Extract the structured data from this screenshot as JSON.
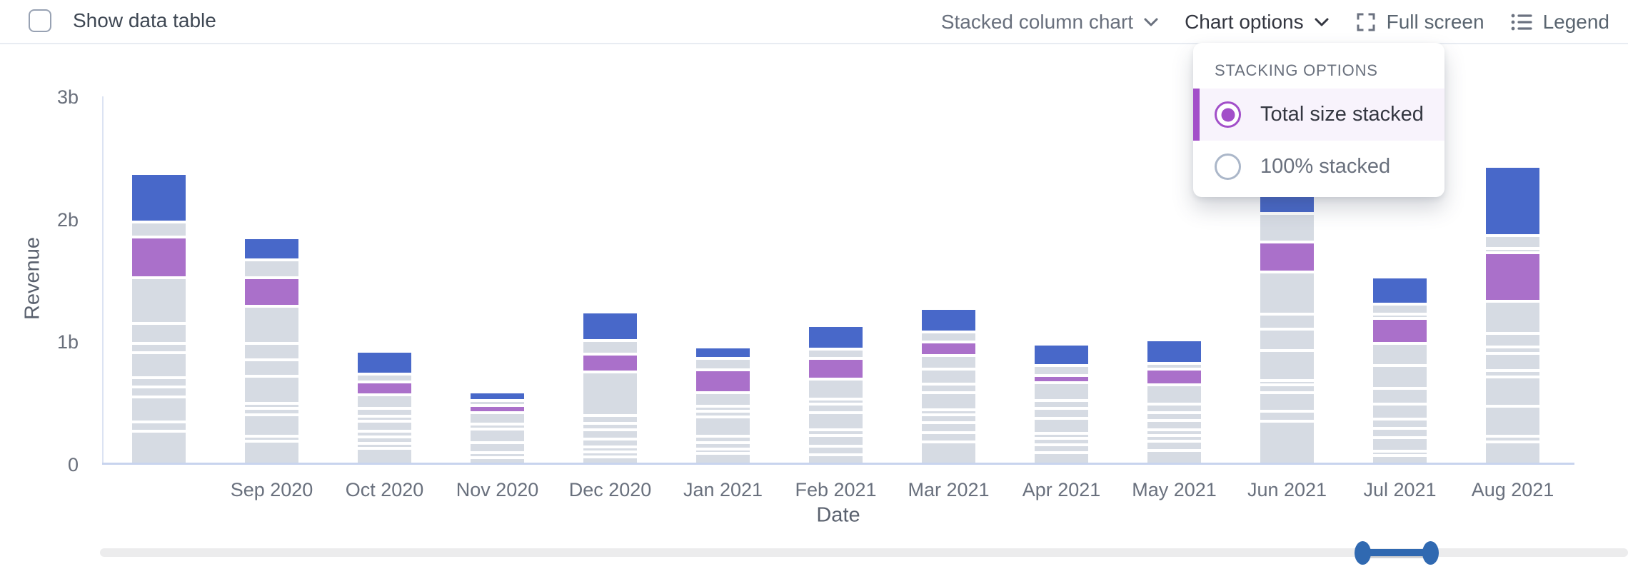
{
  "header": {
    "show_data_table_label": "Show data table",
    "chart_type_label": "Stacked column chart",
    "chart_options_label": "Chart options",
    "full_screen_label": "Full screen",
    "legend_label": "Legend"
  },
  "stacking_menu": {
    "title": "STACKING OPTIONS",
    "options": [
      {
        "label": "Total size stacked",
        "selected": true
      },
      {
        "label": "100% stacked",
        "selected": false
      }
    ],
    "accent_color": "#A24FC9"
  },
  "chart_data": {
    "type": "bar",
    "stacked": true,
    "title": "",
    "xlabel": "Date",
    "ylabel": "Revenue",
    "unit": "billions",
    "ylim": [
      0,
      3
    ],
    "y_ticks": [
      {
        "label": "0",
        "value": 0
      },
      {
        "label": "1b",
        "value": 1
      },
      {
        "label": "2b",
        "value": 2
      },
      {
        "label": "3b",
        "value": 3
      }
    ],
    "grid": false,
    "legend_position": "hidden",
    "colors": {
      "g": "#D6DBE3",
      "p": "#AA70CA",
      "b": "#4868C9"
    },
    "color_legend": {
      "g": "other-series-gray",
      "p": "highlight-purple",
      "b": "highlight-blue"
    },
    "categories": [
      "",
      "Sep 2020",
      "Oct 2020",
      "Nov 2020",
      "Dec 2020",
      "Jan 2021",
      "Feb 2021",
      "Mar 2021",
      "Apr 2021",
      "May 2021",
      "Jun 2021",
      "Jul 2021",
      "Aug 2021"
    ],
    "columns": [
      {
        "label": "",
        "total": 2.34,
        "segments": [
          {
            "c": "g",
            "v": 0.245
          },
          {
            "c": "g",
            "v": 0.05
          },
          {
            "c": "g",
            "v": 0.18
          },
          {
            "c": "g",
            "v": 0.06
          },
          {
            "c": "g",
            "v": 0.05
          },
          {
            "c": "g",
            "v": 0.18
          },
          {
            "c": "g",
            "v": 0.05
          },
          {
            "c": "g",
            "v": 0.14
          },
          {
            "c": "g",
            "v": 0.35
          },
          {
            "c": "p",
            "v": 0.31
          },
          {
            "c": "g",
            "v": 0.1
          },
          {
            "c": "b",
            "v": 0.37
          }
        ]
      },
      {
        "label": "Sep 2020",
        "total": 1.74,
        "segments": [
          {
            "c": "g",
            "v": 0.163
          },
          {
            "c": "g",
            "v": 0.018
          },
          {
            "c": "g",
            "v": 0.152
          },
          {
            "c": "g",
            "v": 0.029
          },
          {
            "c": "g",
            "v": 0.02
          },
          {
            "c": "g",
            "v": 0.2
          },
          {
            "c": "g",
            "v": 0.11
          },
          {
            "c": "g",
            "v": 0.11
          },
          {
            "c": "g",
            "v": 0.28
          },
          {
            "c": "p",
            "v": 0.21
          },
          {
            "c": "g",
            "v": 0.12
          },
          {
            "c": "b",
            "v": 0.16
          }
        ]
      },
      {
        "label": "Oct 2020",
        "total": 0.9,
        "segments": [
          {
            "c": "g",
            "v": 0.105
          },
          {
            "c": "g",
            "v": 0.02
          },
          {
            "c": "g",
            "v": 0.027
          },
          {
            "c": "g",
            "v": 0.022
          },
          {
            "c": "g",
            "v": 0.06
          },
          {
            "c": "g",
            "v": 0.02
          },
          {
            "c": "g",
            "v": 0.04
          },
          {
            "c": "g",
            "v": 0.086
          },
          {
            "c": "p",
            "v": 0.08
          },
          {
            "c": "g",
            "v": 0.04
          },
          {
            "c": "b",
            "v": 0.163
          }
        ]
      },
      {
        "label": "Nov 2020",
        "total": 0.52,
        "segments": [
          {
            "c": "g",
            "v": 0.03
          },
          {
            "c": "g",
            "v": 0.02
          },
          {
            "c": "g",
            "v": 0.058
          },
          {
            "c": "g",
            "v": 0.085
          },
          {
            "c": "g",
            "v": 0.015
          },
          {
            "c": "g",
            "v": 0.067
          },
          {
            "c": "p",
            "v": 0.036
          },
          {
            "c": "g",
            "v": 0.017
          },
          {
            "c": "b",
            "v": 0.048
          }
        ]
      },
      {
        "label": "Dec 2020",
        "total": 1.23,
        "segments": [
          {
            "c": "g",
            "v": 0.035
          },
          {
            "c": "g",
            "v": 0.015
          },
          {
            "c": "g",
            "v": 0.015
          },
          {
            "c": "g",
            "v": 0.04
          },
          {
            "c": "g",
            "v": 0.055
          },
          {
            "c": "g",
            "v": 0.03
          },
          {
            "c": "g",
            "v": 0.041
          },
          {
            "c": "g",
            "v": 0.332
          },
          {
            "c": "p",
            "v": 0.12
          },
          {
            "c": "g",
            "v": 0.09
          },
          {
            "c": "b",
            "v": 0.21
          }
        ]
      },
      {
        "label": "Jan 2021",
        "total": 0.89,
        "segments": [
          {
            "c": "g",
            "v": 0.064
          },
          {
            "c": "g",
            "v": 0.014
          },
          {
            "c": "g",
            "v": 0.029
          },
          {
            "c": "g",
            "v": 0.03
          },
          {
            "c": "g",
            "v": 0.136
          },
          {
            "c": "g",
            "v": 0.024
          },
          {
            "c": "g",
            "v": 0.02
          },
          {
            "c": "g",
            "v": 0.087
          },
          {
            "c": "p",
            "v": 0.165
          },
          {
            "c": "g",
            "v": 0.07
          },
          {
            "c": "b",
            "v": 0.07
          }
        ]
      },
      {
        "label": "Feb 2021",
        "total": 1.09,
        "segments": [
          {
            "c": "g",
            "v": 0.05
          },
          {
            "c": "g",
            "v": 0.046
          },
          {
            "c": "g",
            "v": 0.065
          },
          {
            "c": "g",
            "v": 0.023
          },
          {
            "c": "g",
            "v": 0.114
          },
          {
            "c": "g",
            "v": 0.044
          },
          {
            "c": "g",
            "v": 0.02
          },
          {
            "c": "g",
            "v": 0.138
          },
          {
            "c": "p",
            "v": 0.145
          },
          {
            "c": "g",
            "v": 0.05
          },
          {
            "c": "b",
            "v": 0.17
          }
        ]
      },
      {
        "label": "Mar 2021",
        "total": 1.22,
        "segments": [
          {
            "c": "g",
            "v": 0.157
          },
          {
            "c": "g",
            "v": 0.053
          },
          {
            "c": "g",
            "v": 0.06
          },
          {
            "c": "g",
            "v": 0.04
          },
          {
            "c": "g",
            "v": 0.015
          },
          {
            "c": "g",
            "v": 0.116
          },
          {
            "c": "g",
            "v": 0.047
          },
          {
            "c": "g",
            "v": 0.1
          },
          {
            "c": "g",
            "v": 0.09
          },
          {
            "c": "p",
            "v": 0.09
          },
          {
            "c": "g",
            "v": 0.06
          },
          {
            "c": "b",
            "v": 0.17
          }
        ]
      },
      {
        "label": "Apr 2021",
        "total": 1.0,
        "segments": [
          {
            "c": "g",
            "v": 0.07
          },
          {
            "c": "g",
            "v": 0.041
          },
          {
            "c": "g",
            "v": 0.03
          },
          {
            "c": "g",
            "v": 0.02
          },
          {
            "c": "g",
            "v": 0.1
          },
          {
            "c": "g",
            "v": 0.06
          },
          {
            "c": "g",
            "v": 0.042
          },
          {
            "c": "g",
            "v": 0.125
          },
          {
            "c": "p",
            "v": 0.036
          },
          {
            "c": "g",
            "v": 0.06
          },
          {
            "c": "b",
            "v": 0.154
          }
        ]
      },
      {
        "label": "May 2021",
        "total": 0.99,
        "segments": [
          {
            "c": "g",
            "v": 0.09
          },
          {
            "c": "g",
            "v": 0.05
          },
          {
            "c": "g",
            "v": 0.025
          },
          {
            "c": "g",
            "v": 0.023
          },
          {
            "c": "g",
            "v": 0.05
          },
          {
            "c": "g",
            "v": 0.041
          },
          {
            "c": "g",
            "v": 0.046
          },
          {
            "c": "g",
            "v": 0.133
          },
          {
            "c": "p",
            "v": 0.104
          },
          {
            "c": "g",
            "v": 0.025
          },
          {
            "c": "b",
            "v": 0.17
          }
        ]
      },
      {
        "label": "Jun 2021",
        "total": 2.18,
        "segments": [
          {
            "c": "g",
            "v": 0.326
          },
          {
            "c": "g",
            "v": 0.058
          },
          {
            "c": "g",
            "v": 0.128
          },
          {
            "c": "g",
            "v": 0.04
          },
          {
            "c": "g",
            "v": 0.01
          },
          {
            "c": "g",
            "v": 0.22
          },
          {
            "c": "g",
            "v": 0.15
          },
          {
            "c": "g",
            "v": 0.1
          },
          {
            "c": "g",
            "v": 0.32
          },
          {
            "c": "p",
            "v": 0.22
          },
          {
            "c": "g",
            "v": 0.21
          },
          {
            "c": "b",
            "v": 0.13
          }
        ]
      },
      {
        "label": "Jul 2021",
        "total": 1.44,
        "segments": [
          {
            "c": "g",
            "v": 0.047
          },
          {
            "c": "g",
            "v": 0.012
          },
          {
            "c": "g",
            "v": 0.085
          },
          {
            "c": "g",
            "v": 0.05
          },
          {
            "c": "g",
            "v": 0.05
          },
          {
            "c": "g",
            "v": 0.098
          },
          {
            "c": "g",
            "v": 0.105
          },
          {
            "c": "g",
            "v": 0.163
          },
          {
            "c": "g",
            "v": 0.16
          },
          {
            "c": "p",
            "v": 0.18
          },
          {
            "c": "g",
            "v": 0.011
          },
          {
            "c": "g",
            "v": 0.06
          },
          {
            "c": "b",
            "v": 0.2
          }
        ]
      },
      {
        "label": "Aug 2021",
        "total": 2.4,
        "segments": [
          {
            "c": "g",
            "v": 0.157
          },
          {
            "c": "g",
            "v": 0.025
          },
          {
            "c": "g",
            "v": 0.22
          },
          {
            "c": "g",
            "v": 0.214
          },
          {
            "c": "g",
            "v": 0.03
          },
          {
            "c": "g",
            "v": 0.115
          },
          {
            "c": "g",
            "v": 0.03
          },
          {
            "c": "g",
            "v": 0.09
          },
          {
            "c": "g",
            "v": 0.24
          },
          {
            "c": "p",
            "v": 0.37
          },
          {
            "c": "g",
            "v": 0.01
          },
          {
            "c": "g",
            "v": 0.08
          },
          {
            "c": "b",
            "v": 0.54
          }
        ]
      }
    ]
  },
  "slider": {
    "accent_color": "#3069B1"
  }
}
